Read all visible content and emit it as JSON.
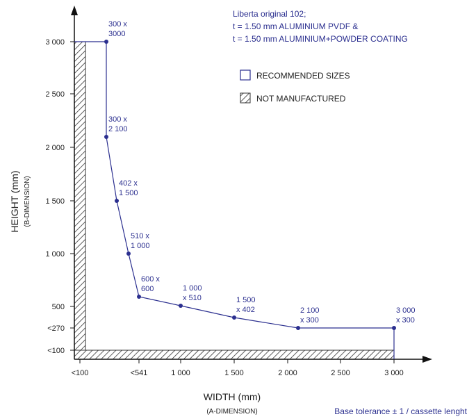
{
  "chart_data": {
    "type": "line",
    "title_lines": [
      "Liberta original 102;",
      "t = 1.50 mm ALUMINIUM PVDF &",
      "t = 1.50 mm ALUMINIUM+POWDER COATING"
    ],
    "xlabel": "WIDTH (mm)",
    "xlabel_sub": "(A-DIMENSION)",
    "ylabel": "HEIGHT (mm)",
    "ylabel_sub": "(B-DIMENSION)",
    "x_ticks": [
      {
        "value": 100,
        "label": "<100"
      },
      {
        "value": 541,
        "label": "<541"
      },
      {
        "value": 1000,
        "label": "1 000"
      },
      {
        "value": 1500,
        "label": "1 500"
      },
      {
        "value": 2000,
        "label": "2 000"
      },
      {
        "value": 2500,
        "label": "2 500"
      },
      {
        "value": 3000,
        "label": "3 000"
      }
    ],
    "y_ticks": [
      {
        "value": 100,
        "label": "<100"
      },
      {
        "value": 270,
        "label": "<270"
      },
      {
        "value": 500,
        "label": "500"
      },
      {
        "value": 1000,
        "label": "1 000"
      },
      {
        "value": 1500,
        "label": "1 500"
      },
      {
        "value": 2000,
        "label": "2 000"
      },
      {
        "value": 2500,
        "label": "2 500"
      },
      {
        "value": 3000,
        "label": "3 000"
      }
    ],
    "series": [
      {
        "points": [
          {
            "x": 300,
            "y": 3000,
            "label": [
              "300 x",
              "3000"
            ]
          },
          {
            "x": 300,
            "y": 2100,
            "label": [
              "300 x",
              "2 100"
            ]
          },
          {
            "x": 402,
            "y": 1500,
            "label": [
              "402 x",
              "1 500"
            ]
          },
          {
            "x": 510,
            "y": 1000,
            "label": [
              "510 x",
              "1 000"
            ]
          },
          {
            "x": 600,
            "y": 600,
            "label": [
              "600 x",
              "600"
            ]
          },
          {
            "x": 1000,
            "y": 510,
            "label": [
              "1 000",
              "x 510"
            ]
          },
          {
            "x": 1500,
            "y": 402,
            "label": [
              "1 500",
              "x 402"
            ]
          },
          {
            "x": 2100,
            "y": 300,
            "label": [
              "2 100",
              "x 300"
            ]
          },
          {
            "x": 3000,
            "y": 300,
            "label": [
              "3 000",
              "x 300"
            ]
          }
        ]
      }
    ],
    "legend": [
      {
        "key": "recommended",
        "label": "RECOMMENDED  SIZES"
      },
      {
        "key": "not_manufactured",
        "label": "NOT MANUFACTURED"
      }
    ],
    "footnote": "Base tolerance ± 1 / cassette lenght",
    "colors": {
      "series": "#2b2f8f",
      "axis": "#111111",
      "hatch": "#333333"
    }
  }
}
